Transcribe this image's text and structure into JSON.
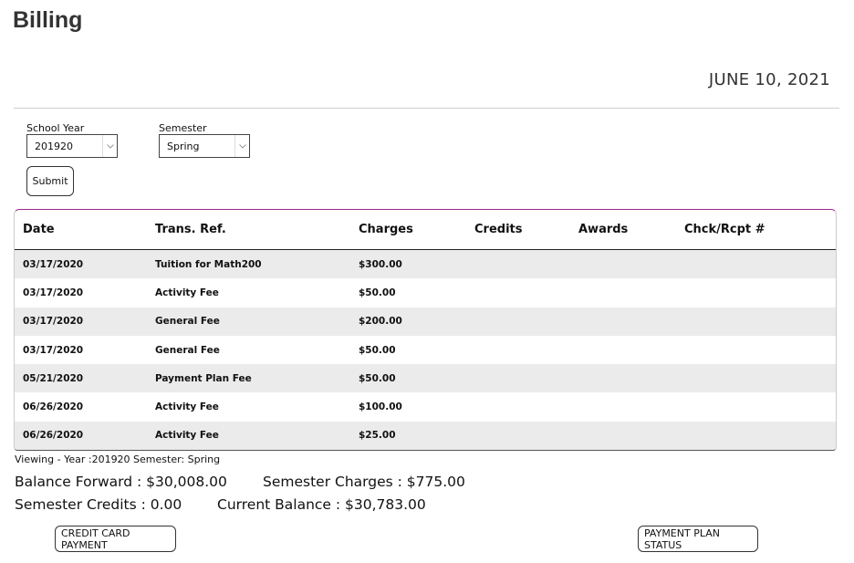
{
  "page": {
    "title": "Billing",
    "date": "JUNE 10, 2021"
  },
  "filters": {
    "school_year_label": "School Year",
    "school_year_value": "201920",
    "semester_label": "Semester",
    "semester_value": "Spring",
    "submit_label": "Submit"
  },
  "table": {
    "headers": [
      "Date",
      "Trans. Ref.",
      "Charges",
      "Credits",
      "Awards",
      "Chck/Rcpt #"
    ],
    "rows": [
      {
        "date": "03/17/2020",
        "ref": "Tuition for Math200",
        "charges": "$300.00",
        "credits": "",
        "awards": "",
        "check": ""
      },
      {
        "date": "03/17/2020",
        "ref": "Activity Fee",
        "charges": "$50.00",
        "credits": "",
        "awards": "",
        "check": ""
      },
      {
        "date": "03/17/2020",
        "ref": "General Fee",
        "charges": "$200.00",
        "credits": "",
        "awards": "",
        "check": ""
      },
      {
        "date": "03/17/2020",
        "ref": "General Fee",
        "charges": "$50.00",
        "credits": "",
        "awards": "",
        "check": ""
      },
      {
        "date": "05/21/2020",
        "ref": "Payment Plan Fee",
        "charges": "$50.00",
        "credits": "",
        "awards": "",
        "check": ""
      },
      {
        "date": "06/26/2020",
        "ref": "Activity Fee",
        "charges": "$100.00",
        "credits": "",
        "awards": "",
        "check": ""
      },
      {
        "date": "06/26/2020",
        "ref": "Activity Fee",
        "charges": "$25.00",
        "credits": "",
        "awards": "",
        "check": ""
      }
    ]
  },
  "summary": {
    "viewing": "Viewing - Year :201920 Semester: Spring",
    "balance_forward": "Balance Forward : $30,008.00",
    "semester_charges": "Semester Charges : $775.00",
    "semester_credits": "Semester Credits : 0.00",
    "current_balance": "Current Balance : $30,783.00"
  },
  "actions": {
    "credit_card_label": "CREDIT CARD PAYMENT",
    "payment_plan_label": "PAYMENT PLAN STATUS"
  },
  "colors": {
    "accent": "#9b2a8f",
    "row_stripe": "#ebebeb"
  }
}
